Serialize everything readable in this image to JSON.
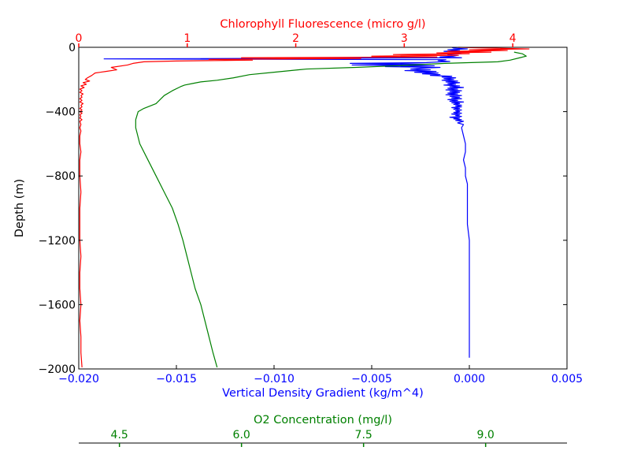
{
  "chart_data": {
    "type": "line",
    "title": "",
    "ylabel": "Depth (m)",
    "ylim": [
      -2000,
      0
    ],
    "yticks": [
      "0",
      "−400",
      "−800",
      "−1200",
      "−1600",
      "−2000"
    ],
    "ytick_values": [
      0,
      -400,
      -800,
      -1200,
      -1600,
      -2000
    ],
    "colors": {
      "density": "#0000ff",
      "chlorophyll": "#ff0000",
      "oxygen": "#008000",
      "axis": "#000000"
    },
    "axes": {
      "density": {
        "label": "Vertical Density Gradient (kg/m^4)",
        "position": "bottom",
        "range": [
          -0.02,
          0.005
        ],
        "ticks": [
          "−0.020",
          "−0.015",
          "−0.010",
          "−0.005",
          "0.000",
          "0.005"
        ],
        "tick_values": [
          -0.02,
          -0.015,
          -0.01,
          -0.005,
          0.0,
          0.005
        ]
      },
      "chlorophyll": {
        "label": "Chlorophyll Fluorescence (micro g/l)",
        "position": "top",
        "range": [
          0,
          4.5
        ],
        "ticks": [
          "0",
          "1",
          "2",
          "3",
          "4"
        ],
        "tick_values": [
          0,
          1,
          2,
          3,
          4
        ]
      },
      "oxygen": {
        "label": "O2 Concentration (mg/l)",
        "position": "bottom-offset",
        "range": [
          4.0,
          10.0
        ],
        "ticks": [
          "4.5",
          "6.0",
          "7.5",
          "9.0"
        ],
        "tick_values": [
          4.5,
          6.0,
          7.5,
          9.0
        ]
      }
    },
    "series": [
      {
        "key": "density",
        "axis": "density",
        "points": [
          [
            -0.0009,
            0
          ],
          [
            -0.0008,
            -5
          ],
          [
            -0.0001,
            -10
          ],
          [
            -0.0011,
            -15
          ],
          [
            -0.0005,
            -20
          ],
          [
            -0.0013,
            -25
          ],
          [
            -0.0002,
            -30
          ],
          [
            -0.0009,
            -35
          ],
          [
            -0.0004,
            -40
          ],
          [
            -0.0011,
            -45
          ],
          [
            -0.0006,
            -50
          ],
          [
            -0.0008,
            -55
          ],
          [
            -0.0015,
            -60
          ],
          [
            -0.0004,
            -65
          ],
          [
            -0.0187,
            -72
          ],
          [
            -0.0012,
            -77
          ],
          [
            -0.0016,
            -83
          ],
          [
            -0.001,
            -88
          ],
          [
            -0.0022,
            -95
          ],
          [
            -0.0061,
            -100
          ],
          [
            -0.002,
            -105
          ],
          [
            -0.006,
            -110
          ],
          [
            -0.0018,
            -115
          ],
          [
            -0.0043,
            -120
          ],
          [
            -0.0015,
            -125
          ],
          [
            -0.0025,
            -130
          ],
          [
            -0.003,
            -135
          ],
          [
            -0.002,
            -140
          ],
          [
            -0.0033,
            -145
          ],
          [
            -0.0017,
            -150
          ],
          [
            -0.0028,
            -155
          ],
          [
            -0.0016,
            -160
          ],
          [
            -0.0024,
            -165
          ],
          [
            -0.0015,
            -170
          ],
          [
            -0.002,
            -175
          ],
          [
            -0.0009,
            -180
          ],
          [
            -0.0014,
            -185
          ],
          [
            -0.0007,
            -190
          ],
          [
            -0.0013,
            -195
          ],
          [
            -0.0008,
            -200
          ],
          [
            -0.0014,
            -205
          ],
          [
            -0.0006,
            -210
          ],
          [
            -0.0012,
            -215
          ],
          [
            -0.0005,
            -220
          ],
          [
            -0.0011,
            -225
          ],
          [
            -0.0007,
            -230
          ],
          [
            -0.0013,
            -235
          ],
          [
            -0.0005,
            -240
          ],
          [
            -0.001,
            -245
          ],
          [
            -0.0003,
            -250
          ],
          [
            -0.0011,
            -255
          ],
          [
            -0.0006,
            -260
          ],
          [
            -0.0012,
            -265
          ],
          [
            -0.0004,
            -270
          ],
          [
            -0.001,
            -275
          ],
          [
            -0.0005,
            -280
          ],
          [
            -0.0011,
            -285
          ],
          [
            -0.0006,
            -290
          ],
          [
            -0.0012,
            -295
          ],
          [
            -0.0004,
            -300
          ],
          [
            -0.001,
            -305
          ],
          [
            -0.0005,
            -310
          ],
          [
            -0.0009,
            -315
          ],
          [
            -0.0004,
            -320
          ],
          [
            -0.0011,
            -325
          ],
          [
            -0.0006,
            -330
          ],
          [
            -0.001,
            -335
          ],
          [
            -0.0003,
            -340
          ],
          [
            -0.0009,
            -345
          ],
          [
            -0.0005,
            -350
          ],
          [
            -0.0008,
            -355
          ],
          [
            -0.0004,
            -360
          ],
          [
            -0.0007,
            -365
          ],
          [
            -0.0004,
            -370
          ],
          [
            -0.0009,
            -375
          ],
          [
            -0.0005,
            -380
          ],
          [
            -0.0008,
            -385
          ],
          [
            -0.0004,
            -390
          ],
          [
            -0.0007,
            -395
          ],
          [
            -0.0005,
            -400
          ],
          [
            -0.0008,
            -405
          ],
          [
            -0.0004,
            -410
          ],
          [
            -0.0009,
            -415
          ],
          [
            -0.0005,
            -420
          ],
          [
            -0.0007,
            -425
          ],
          [
            -0.0004,
            -430
          ],
          [
            -0.001,
            -435
          ],
          [
            -0.0005,
            -440
          ],
          [
            -0.0008,
            -445
          ],
          [
            -0.0004,
            -450
          ],
          [
            -0.0007,
            -455
          ],
          [
            -0.0003,
            -460
          ],
          [
            -0.0006,
            -470
          ],
          [
            -0.0003,
            -480
          ],
          [
            -0.0004,
            -500
          ],
          [
            -0.0003,
            -550
          ],
          [
            -0.0002,
            -600
          ],
          [
            -0.0002,
            -650
          ],
          [
            -0.0003,
            -700
          ],
          [
            -0.0002,
            -750
          ],
          [
            -0.0002,
            -800
          ],
          [
            -0.0001,
            -850
          ],
          [
            -0.0001,
            -900
          ],
          [
            -0.0001,
            -1000
          ],
          [
            -0.0001,
            -1100
          ],
          [
            0.0,
            -1200
          ],
          [
            0.0,
            -1300
          ],
          [
            0.0,
            -1400
          ],
          [
            0.0,
            -1500
          ],
          [
            0.0,
            -1600
          ],
          [
            0.0,
            -1700
          ],
          [
            0.0,
            -1800
          ],
          [
            0.0,
            -1930
          ]
        ]
      },
      {
        "key": "chlorophyll",
        "axis": "chlorophyll",
        "points": [
          [
            3.5,
            0
          ],
          [
            3.8,
            -5
          ],
          [
            4.15,
            -10
          ],
          [
            3.6,
            -15
          ],
          [
            3.95,
            -20
          ],
          [
            3.4,
            -25
          ],
          [
            3.8,
            -30
          ],
          [
            3.3,
            -35
          ],
          [
            3.6,
            -40
          ],
          [
            2.9,
            -45
          ],
          [
            3.5,
            -50
          ],
          [
            2.7,
            -55
          ],
          [
            3.3,
            -60
          ],
          [
            1.5,
            -65
          ],
          [
            2.6,
            -70
          ],
          [
            1.2,
            -75
          ],
          [
            1.6,
            -80
          ],
          [
            0.9,
            -85
          ],
          [
            0.6,
            -90
          ],
          [
            0.5,
            -100
          ],
          [
            0.45,
            -110
          ],
          [
            0.3,
            -125
          ],
          [
            0.35,
            -140
          ],
          [
            0.25,
            -150
          ],
          [
            0.15,
            -160
          ],
          [
            0.12,
            -175
          ],
          [
            0.08,
            -190
          ],
          [
            0.06,
            -200
          ],
          [
            0.1,
            -210
          ],
          [
            0.04,
            -220
          ],
          [
            0.07,
            -230
          ],
          [
            0.02,
            -240
          ],
          [
            0.05,
            -250
          ],
          [
            0.01,
            -260
          ],
          [
            0.03,
            -270
          ],
          [
            0.01,
            -280
          ],
          [
            0.04,
            -290
          ],
          [
            0.02,
            -300
          ],
          [
            0.03,
            -310
          ],
          [
            0.01,
            -320
          ],
          [
            0.03,
            -330
          ],
          [
            0.01,
            -340
          ],
          [
            0.04,
            -350
          ],
          [
            0.02,
            -360
          ],
          [
            0.03,
            -370
          ],
          [
            0.01,
            -380
          ],
          [
            0.03,
            -390
          ],
          [
            0.01,
            -400
          ],
          [
            0.03,
            -410
          ],
          [
            0.01,
            -420
          ],
          [
            0.02,
            -430
          ],
          [
            0.01,
            -440
          ],
          [
            0.03,
            -450
          ],
          [
            0.01,
            -460
          ],
          [
            0.02,
            -480
          ],
          [
            0.01,
            -500
          ],
          [
            0.02,
            -520
          ],
          [
            0.01,
            -550
          ],
          [
            0.01,
            -600
          ],
          [
            0.02,
            -650
          ],
          [
            0.01,
            -700
          ],
          [
            0.01,
            -800
          ],
          [
            0.02,
            -900
          ],
          [
            0.01,
            -1000
          ],
          [
            0.01,
            -1100
          ],
          [
            0.01,
            -1200
          ],
          [
            0.02,
            -1300
          ],
          [
            0.01,
            -1400
          ],
          [
            0.01,
            -1500
          ],
          [
            0.02,
            -1600
          ],
          [
            0.01,
            -1700
          ],
          [
            0.02,
            -1800
          ],
          [
            0.02,
            -1900
          ],
          [
            0.03,
            -1990
          ]
        ]
      },
      {
        "key": "oxygen",
        "axis": "oxygen",
        "points": [
          [
            9.35,
            -30
          ],
          [
            9.45,
            -40
          ],
          [
            9.5,
            -55
          ],
          [
            9.42,
            -65
          ],
          [
            9.3,
            -80
          ],
          [
            9.15,
            -90
          ],
          [
            8.5,
            -100
          ],
          [
            7.9,
            -115
          ],
          [
            7.4,
            -125
          ],
          [
            6.8,
            -135
          ],
          [
            6.4,
            -155
          ],
          [
            6.1,
            -170
          ],
          [
            5.9,
            -190
          ],
          [
            5.7,
            -205
          ],
          [
            5.5,
            -215
          ],
          [
            5.4,
            -225
          ],
          [
            5.3,
            -235
          ],
          [
            5.25,
            -245
          ],
          [
            5.15,
            -270
          ],
          [
            5.05,
            -300
          ],
          [
            4.95,
            -350
          ],
          [
            4.8,
            -380
          ],
          [
            4.73,
            -400
          ],
          [
            4.7,
            -450
          ],
          [
            4.7,
            -500
          ],
          [
            4.75,
            -600
          ],
          [
            4.85,
            -700
          ],
          [
            4.95,
            -800
          ],
          [
            5.05,
            -900
          ],
          [
            5.15,
            -1000
          ],
          [
            5.22,
            -1100
          ],
          [
            5.28,
            -1200
          ],
          [
            5.33,
            -1300
          ],
          [
            5.38,
            -1400
          ],
          [
            5.43,
            -1500
          ],
          [
            5.5,
            -1600
          ],
          [
            5.55,
            -1700
          ],
          [
            5.6,
            -1800
          ],
          [
            5.65,
            -1900
          ],
          [
            5.7,
            -1990
          ]
        ]
      }
    ]
  }
}
